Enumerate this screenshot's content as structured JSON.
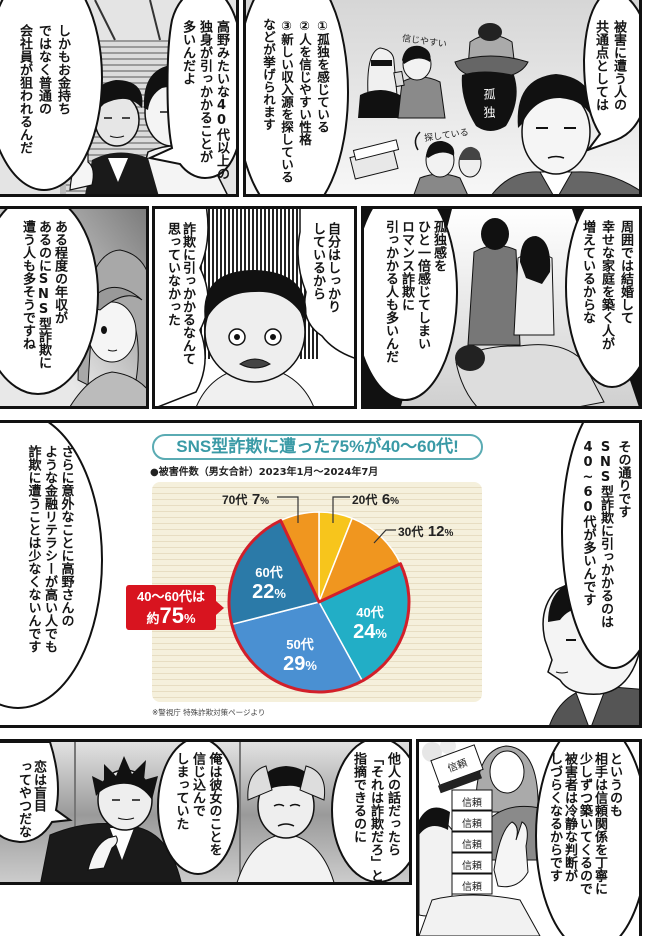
{
  "row1": {
    "left_panel": {
      "bubble_right": {
        "lines": [
          "高野みたいな40代以上の",
          "独身が引っかかることが",
          "多いんだよ"
        ]
      },
      "bubble_left": {
        "lines": [
          "しかもお金持ち",
          "ではなく普通の",
          "会社員が狙われるんだ"
        ]
      }
    },
    "right_panel": {
      "narration": {
        "lines": [
          "①孤独を感じている",
          "②人を信じやすい性格",
          "③新しい収入源を探している",
          "などが挙げられます"
        ]
      },
      "bubble": {
        "lines": [
          "被害に遭う人の",
          "共通点としては"
        ]
      },
      "sketch_labels": {
        "trusting": "信じやすい",
        "loneliness": "孤独",
        "searching": "探している"
      }
    }
  },
  "row2": {
    "left_panel": {
      "bubble": {
        "lines": [
          "ある程度の年収が",
          "あるのにSNS型詐欺に",
          "遭う人も多そうですね"
        ]
      }
    },
    "middle_panel": {
      "thought_right": {
        "lines": [
          "自分はしっかり",
          "しているから"
        ]
      },
      "thought_left": {
        "lines": [
          "詐欺に引っかかるなんて",
          "思っていなかった"
        ]
      }
    },
    "right_panel": {
      "bubble_left": {
        "lines": [
          "孤独感を",
          "ひと一倍感じてしまい",
          "ロマンス詐欺に",
          "引っかかる人も多いんだ"
        ]
      },
      "bubble_right": {
        "lines": [
          "周囲では結婚して",
          "幸せな家庭を築く人が",
          "増えているからな"
        ]
      }
    }
  },
  "row3": {
    "bubble_left": {
      "lines": [
        "さらに意外なことに高野さんの",
        "ような金融リテラシーが高い人でも",
        "詐欺に遭うことは少なくないんです"
      ]
    },
    "bubble_right": {
      "lines": [
        "その通りです",
        "SNS型詐欺に引っかかるのは",
        "40~60代が多いんです"
      ]
    }
  },
  "row4": {
    "left_panel": {
      "bubble_left": {
        "lines": [
          "恋は盲目",
          "ってやつだな"
        ]
      },
      "bubble_middle": {
        "lines": [
          "俺は彼女のことを",
          "信じ込んで",
          "しまっていた"
        ]
      },
      "bubble_right": {
        "lines": [
          "他人の話だったら",
          "「それは詐欺だろ」と",
          "指摘できるのに"
        ]
      }
    },
    "right_panel": {
      "bubble": {
        "lines": [
          "というのも",
          "相手は信頼関係を丁寧に",
          "少しずつ築いてくるので",
          "被害者は冷静な判断が",
          "しづらくなるからです"
        ]
      },
      "card_labels": [
        "信頼",
        "信頼",
        "信頼",
        "信頼",
        "信頼",
        "信頼"
      ]
    }
  },
  "chart_data": {
    "type": "pie",
    "title": "SNS型詐欺に遭った75%が40～60代!",
    "subtitle": "●被害件数（男女合計）2023年1月～2024年7月",
    "categories": [
      "20代",
      "30代",
      "40代",
      "50代",
      "60代",
      "70代"
    ],
    "values": [
      6,
      12,
      24,
      29,
      22,
      7
    ],
    "unit": "%",
    "colors": [
      "#f7c51c",
      "#f0961f",
      "#22aec6",
      "#4a90d2",
      "#2b7aa8",
      "#f0961f"
    ],
    "start": "top",
    "direction": "clockwise",
    "highlight": {
      "indices": [
        2,
        3,
        4
      ],
      "color": "#d21f2a",
      "label_line1": "40～60代は",
      "label_prefix": "約",
      "label_value": "75",
      "label_unit": "%"
    },
    "source": "※警視庁 特殊詐欺対策ページより",
    "title_color": "#3a9aa6",
    "panel_background": "#f5f0dc"
  }
}
